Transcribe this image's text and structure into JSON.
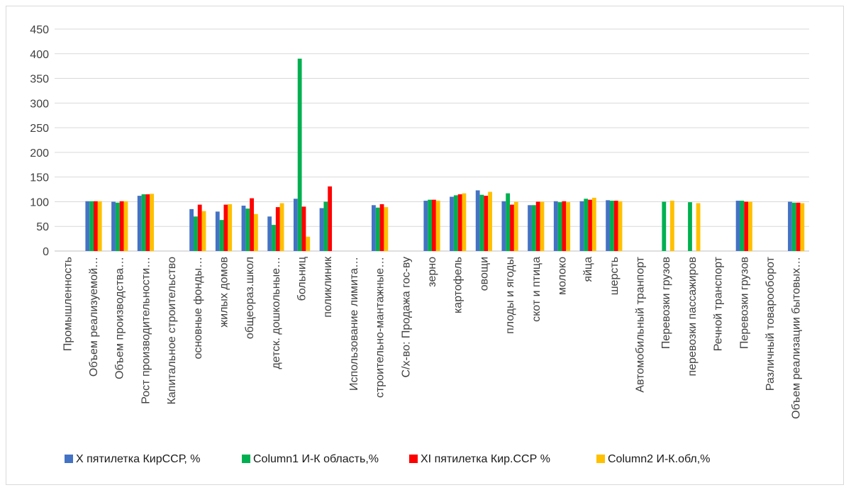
{
  "chart_data": {
    "type": "bar",
    "ylim": [
      0,
      450
    ],
    "yticks": [
      0,
      50,
      100,
      150,
      200,
      250,
      300,
      350,
      400,
      450
    ],
    "grid": true,
    "legend_position": "bottom",
    "categories": [
      "Промышленность",
      "Объем реализуемой…",
      "Объем производства…",
      "Рост производительности…",
      "Капитальное строительство",
      "основные  фонды…",
      "жилых домов",
      "общеораз.школ",
      "детск. дошкольные…",
      "больниц",
      "поликлиник",
      "Использование лимита…",
      "строительно-мантажные…",
      "С/х-во: Продажа гос-ву",
      "зерно",
      "картофель",
      "овощи",
      "плоды и ягоды",
      "скот и птица",
      "молоко",
      "яйца",
      "шерсть",
      "Автомобильный транпорт",
      "Перевозки грузов",
      "перевозки пассажиров",
      "Речной транспорт",
      "Перевозки грузов",
      "Различный товарооборот",
      "Объем реализации бытовых…"
    ],
    "series": [
      {
        "name": "X пятилетка КирССР, %",
        "color": "#4472c4",
        "values": [
          null,
          101,
          100,
          112,
          null,
          85,
          80,
          92,
          70,
          106,
          87,
          null,
          93,
          null,
          102,
          110,
          123,
          101,
          93,
          101,
          101,
          103,
          null,
          null,
          null,
          null,
          102,
          null,
          100
        ]
      },
      {
        "name": "Column1 И-К область,%",
        "color": "#00b050",
        "values": [
          null,
          101,
          98,
          115,
          null,
          70,
          63,
          86,
          53,
          390,
          100,
          null,
          88,
          null,
          104,
          113,
          114,
          117,
          93,
          99,
          106,
          102,
          null,
          100,
          99,
          null,
          102,
          null,
          98
        ]
      },
      {
        "name": "XI пятилетка Кир.ССР %",
        "color": "#ff0000",
        "values": [
          null,
          101,
          101,
          115,
          null,
          94,
          94,
          107,
          89,
          90,
          131,
          null,
          95,
          null,
          104,
          115,
          112,
          94,
          100,
          101,
          104,
          102,
          null,
          null,
          null,
          null,
          100,
          null,
          98
        ]
      },
      {
        "name": "Column2 И-К.обл,%",
        "color": "#ffc000",
        "values": [
          null,
          101,
          101,
          116,
          null,
          81,
          95,
          75,
          97,
          29,
          null,
          null,
          89,
          null,
          102,
          117,
          120,
          100,
          100,
          99,
          108,
          101,
          null,
          102,
          97,
          null,
          100,
          null,
          97
        ]
      }
    ]
  }
}
